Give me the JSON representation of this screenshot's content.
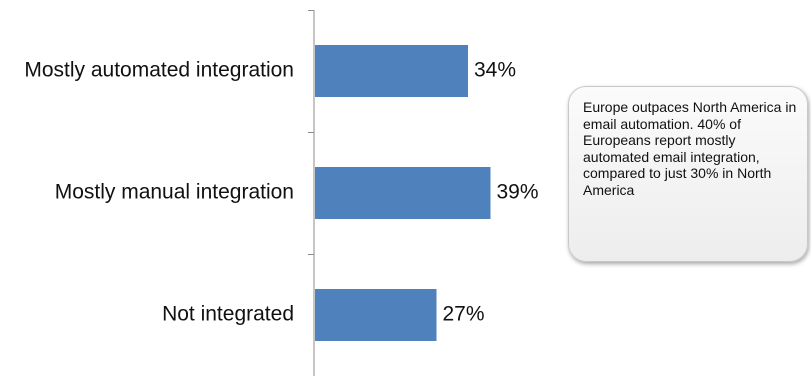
{
  "chart_data": {
    "type": "bar",
    "orientation": "horizontal",
    "categories": [
      "Mostly automated integration",
      "Mostly manual integration",
      "Not integrated"
    ],
    "values": [
      34,
      39,
      27
    ],
    "value_labels": [
      "34%",
      "39%",
      "27%"
    ],
    "bar_color": "#4f81bd",
    "xlim": [
      0,
      100
    ],
    "grid": false,
    "legend": "none"
  },
  "callout": {
    "text": "Europe outpaces North America in email automation. 40% of Europeans report mostly automated email integration, compared to just 30% in North America"
  }
}
